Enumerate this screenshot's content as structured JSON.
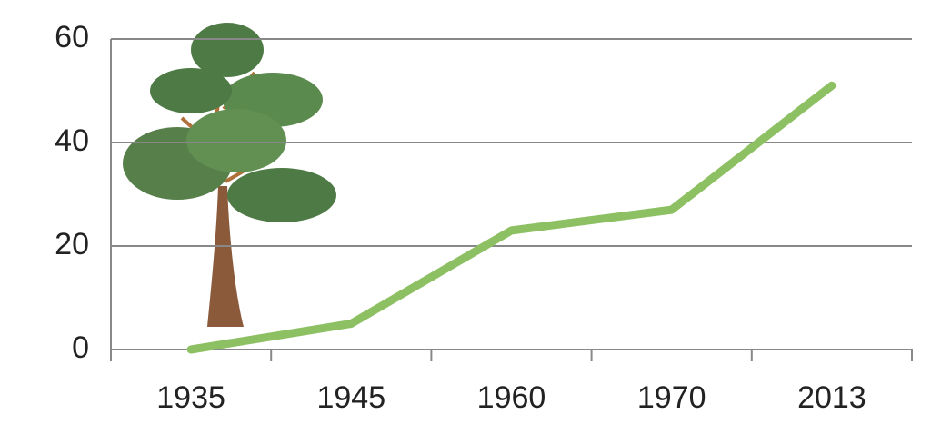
{
  "chart_data": {
    "type": "line",
    "categories": [
      "1935",
      "1945",
      "1960",
      "1970",
      "2013"
    ],
    "values": [
      0,
      5,
      23,
      27,
      51
    ],
    "color": "#8dc063",
    "ylim": [
      0,
      60
    ],
    "yticks": [
      0,
      20,
      40,
      60
    ],
    "grid": true
  }
}
